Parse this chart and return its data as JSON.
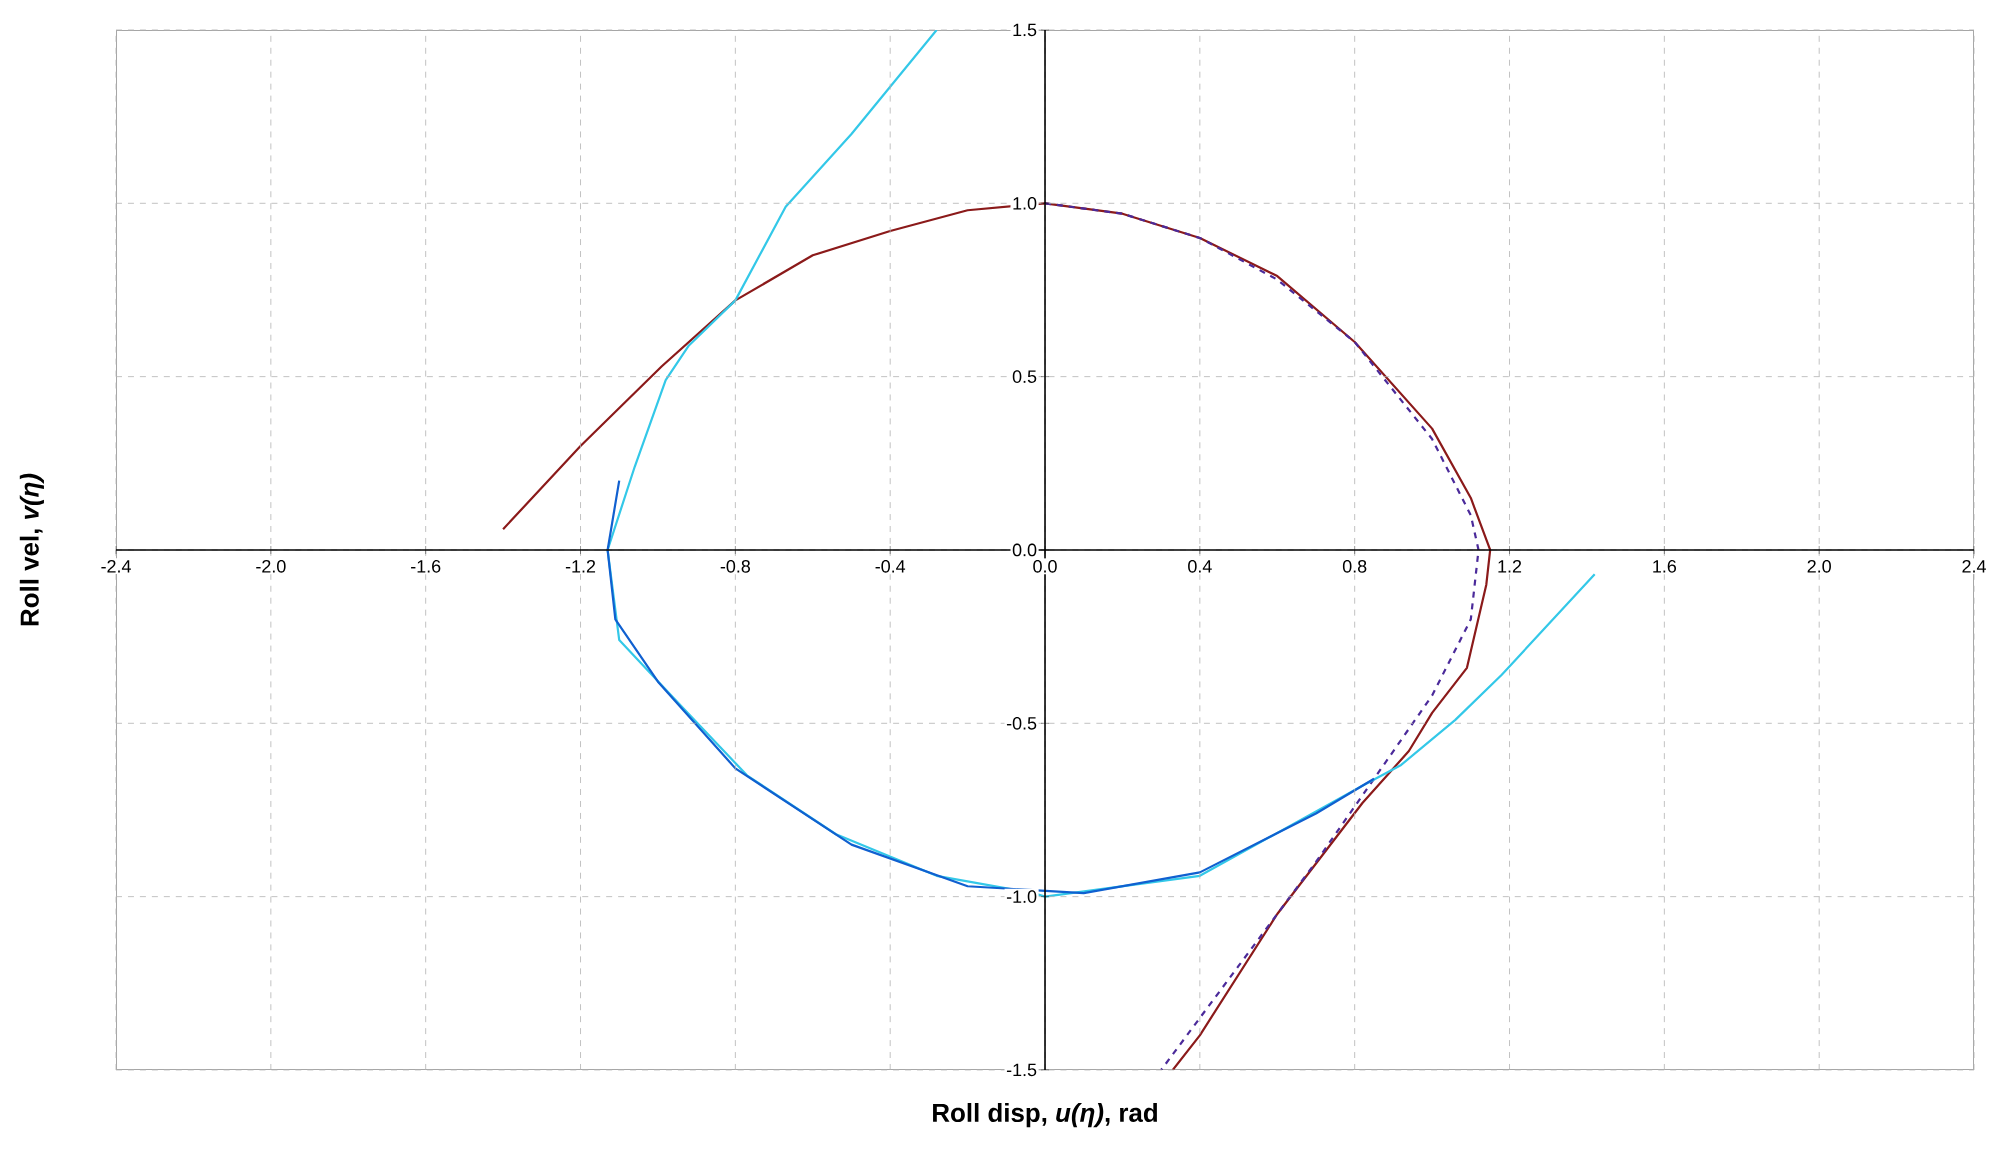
{
  "chart_data": {
    "type": "line",
    "xlabel": "Roll disp, *u(η)*, rad",
    "ylabel": "Roll vel, *v(η)*",
    "xlim": [
      -2.4,
      2.4
    ],
    "ylim": [
      -1.5,
      1.5
    ],
    "xticks": [
      {
        "value": -2.4,
        "label": "-2.4"
      },
      {
        "value": -2.0,
        "label": "-2.0"
      },
      {
        "value": -1.6,
        "label": "-1.6"
      },
      {
        "value": -1.2,
        "label": "-1.2"
      },
      {
        "value": -0.8,
        "label": "-0.8"
      },
      {
        "value": -0.4,
        "label": "-0.4"
      },
      {
        "value": 0,
        "label": "0.0"
      },
      {
        "value": 0.4,
        "label": "0.4"
      },
      {
        "value": 0.8,
        "label": "0.8"
      },
      {
        "value": 1.2,
        "label": "1.2"
      },
      {
        "value": 1.6,
        "label": "1.6"
      },
      {
        "value": 2.0,
        "label": "2.0"
      },
      {
        "value": 2.4,
        "label": "2.4"
      }
    ],
    "yticks": [
      {
        "value": -1.5,
        "label": "-1.5"
      },
      {
        "value": -1.0,
        "label": "-1.0"
      },
      {
        "value": -0.5,
        "label": "-0.5"
      },
      {
        "value": 0,
        "label": "0.0"
      },
      {
        "value": 0.5,
        "label": "0.5"
      },
      {
        "value": 1.0,
        "label": "1.0"
      },
      {
        "value": 1.5,
        "label": "1.5"
      }
    ],
    "grid": true,
    "series": [
      {
        "color": "#8b1a1a",
        "line_style": "solid",
        "x": [
          -1.4,
          -1.2,
          -0.99,
          -0.8,
          -0.6,
          -0.4,
          -0.2,
          0,
          0.2,
          0.4,
          0.6,
          0.8,
          1.0,
          1.1,
          1.15,
          1.14,
          1.09,
          1.0,
          0.94,
          0.82,
          0.6,
          0.4,
          0.33
        ],
        "values": [
          0.06,
          0.3,
          0.53,
          0.72,
          0.85,
          0.92,
          0.98,
          1.0,
          0.97,
          0.9,
          0.79,
          0.6,
          0.35,
          0.15,
          0.0,
          -0.1,
          -0.34,
          -0.47,
          -0.58,
          -0.73,
          -1.05,
          -1.4,
          -1.5
        ]
      },
      {
        "color": "#4b2a9a",
        "line_style": "dashed",
        "x": [
          0,
          0.2,
          0.4,
          0.6,
          0.8,
          1.0,
          1.1,
          1.12,
          1.1,
          1.0,
          0.9,
          0.7,
          0.5,
          0.3
        ],
        "values": [
          1.0,
          0.97,
          0.9,
          0.78,
          0.6,
          0.32,
          0.1,
          0.0,
          -0.2,
          -0.42,
          -0.58,
          -0.9,
          -1.2,
          -1.5
        ]
      },
      {
        "color": "#33c8e8",
        "line_style": "solid",
        "x": [
          -0.28,
          -0.5,
          -0.67,
          -0.8,
          -0.92,
          -0.98,
          -1.06,
          -1.13,
          -1.1,
          -0.94,
          -0.77,
          -0.54,
          -0.28,
          -0.03,
          0.0,
          0.4,
          0.82,
          0.92,
          1.06,
          1.18,
          1.42
        ],
        "values": [
          1.5,
          1.2,
          0.99,
          0.72,
          0.59,
          0.49,
          0.24,
          0.0,
          -0.26,
          -0.45,
          -0.65,
          -0.82,
          -0.94,
          -0.99,
          -1.0,
          -0.94,
          -0.68,
          -0.62,
          -0.49,
          -0.36,
          -0.07
        ]
      },
      {
        "color": "#1060d0",
        "line_style": "solid",
        "x": [
          -1.1,
          -1.13,
          -1.11,
          -1.0,
          -0.8,
          -0.5,
          -0.2,
          0.1,
          0.4,
          0.7,
          0.85
        ],
        "values": [
          0.2,
          0.0,
          -0.2,
          -0.38,
          -0.63,
          -0.85,
          -0.97,
          -0.99,
          -0.93,
          -0.76,
          -0.66
        ]
      }
    ]
  }
}
